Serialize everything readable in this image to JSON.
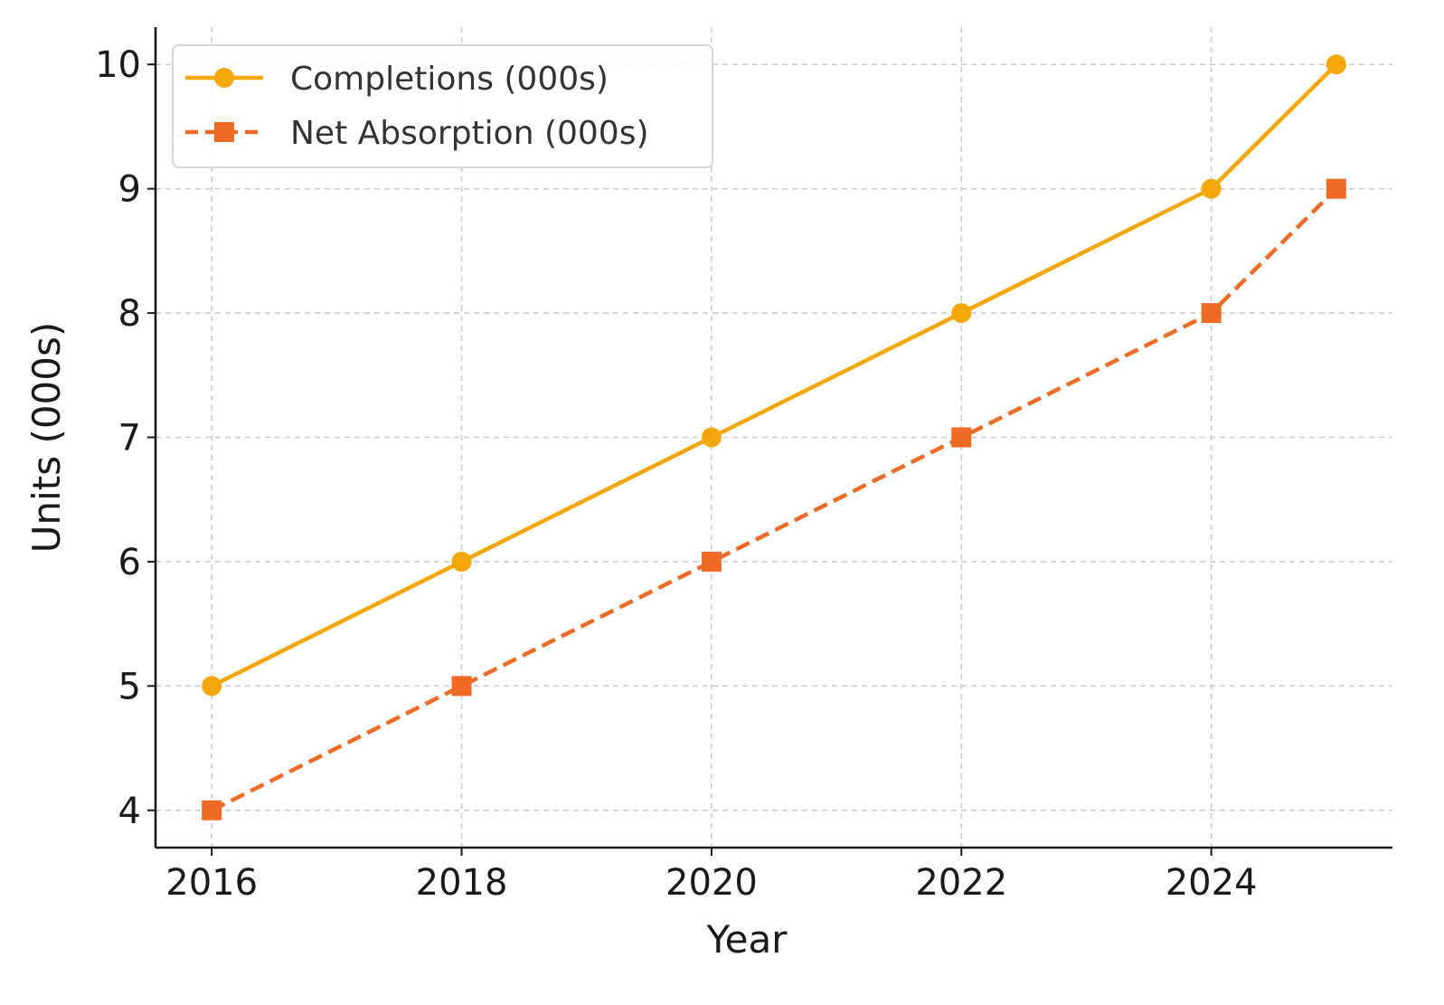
{
  "chart_data": {
    "type": "line",
    "title": "",
    "xlabel": "Year",
    "ylabel": "Units (000s)",
    "x": [
      2016,
      2018,
      2020,
      2022,
      2024,
      2025
    ],
    "xticks": [
      2016,
      2018,
      2020,
      2022,
      2024
    ],
    "yticks": [
      4,
      5,
      6,
      7,
      8,
      9,
      10
    ],
    "xlim": [
      2015.55,
      2025.45
    ],
    "ylim": [
      3.7,
      10.3
    ],
    "grid": true,
    "legend_position": "top-left",
    "series": [
      {
        "name": "Completions (000s)",
        "values": [
          5,
          6,
          7,
          8,
          9,
          10
        ],
        "color": "#f5a70a",
        "line_style": "solid",
        "marker": "circle"
      },
      {
        "name": "Net Absorption (000s)",
        "values": [
          4,
          5,
          6,
          7,
          8,
          9
        ],
        "color": "#ef6a24",
        "line_style": "dashed",
        "marker": "square"
      }
    ]
  }
}
